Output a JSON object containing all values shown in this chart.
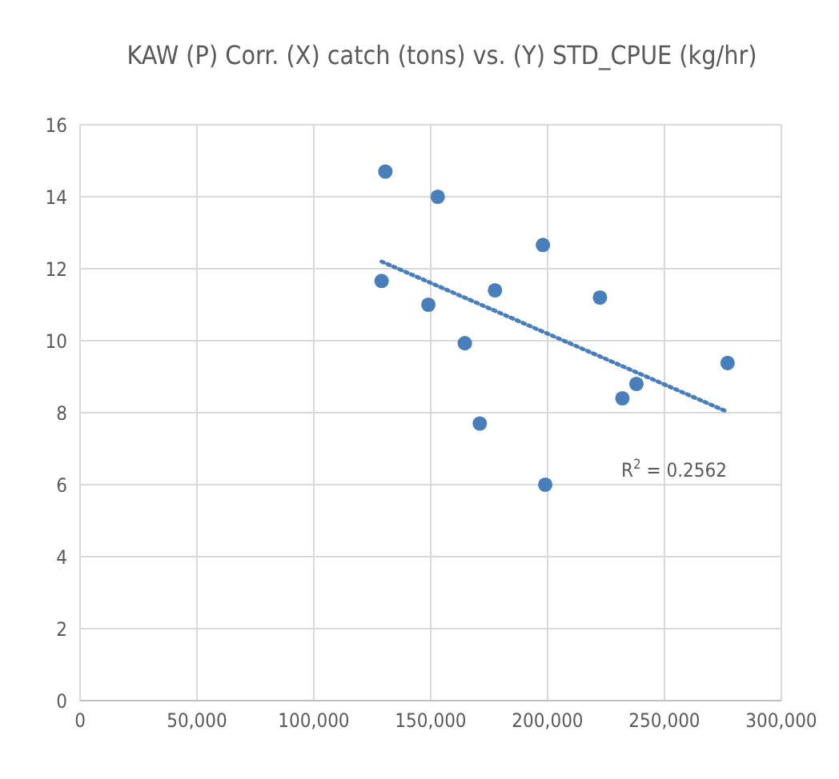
{
  "chart_data": {
    "type": "scatter",
    "title": "KAW (P) Corr. (X) catch (tons) vs. (Y) STD_CPUE (kg/hr)",
    "series": [
      {
        "color": "#4a7ebb",
        "marker": "circle",
        "x": [
          130600,
          129000,
          153000,
          149000,
          164600,
          171000,
          177500,
          198000,
          199000,
          222400,
          232000,
          238000,
          277000
        ],
        "values": [
          14.7,
          11.66,
          14.0,
          11.0,
          9.93,
          7.7,
          11.4,
          12.66,
          6.0,
          11.2,
          8.4,
          8.8,
          9.38
        ]
      },
      {
        "type": "line",
        "color": "#4a7ebb",
        "line_style": "dotted",
        "x": [
          129000,
          276000
        ],
        "values": [
          12.2,
          8.05
        ]
      }
    ],
    "xlim": [
      0,
      300000
    ],
    "xticks": [
      {
        "value": 0,
        "label": "0"
      },
      {
        "value": 50000,
        "label": "50,000"
      },
      {
        "value": 100000,
        "label": "100,000"
      },
      {
        "value": 150000,
        "label": "150,000"
      },
      {
        "value": 200000,
        "label": "200,000"
      },
      {
        "value": 250000,
        "label": "250,000"
      },
      {
        "value": 300000,
        "label": "300,000"
      }
    ],
    "ylim": [
      0,
      16
    ],
    "yticks": [
      0,
      2,
      4,
      6,
      8,
      10,
      12,
      14,
      16
    ],
    "grid": true,
    "annotations": [
      "R$^{2}$ = 0.2562"
    ]
  }
}
